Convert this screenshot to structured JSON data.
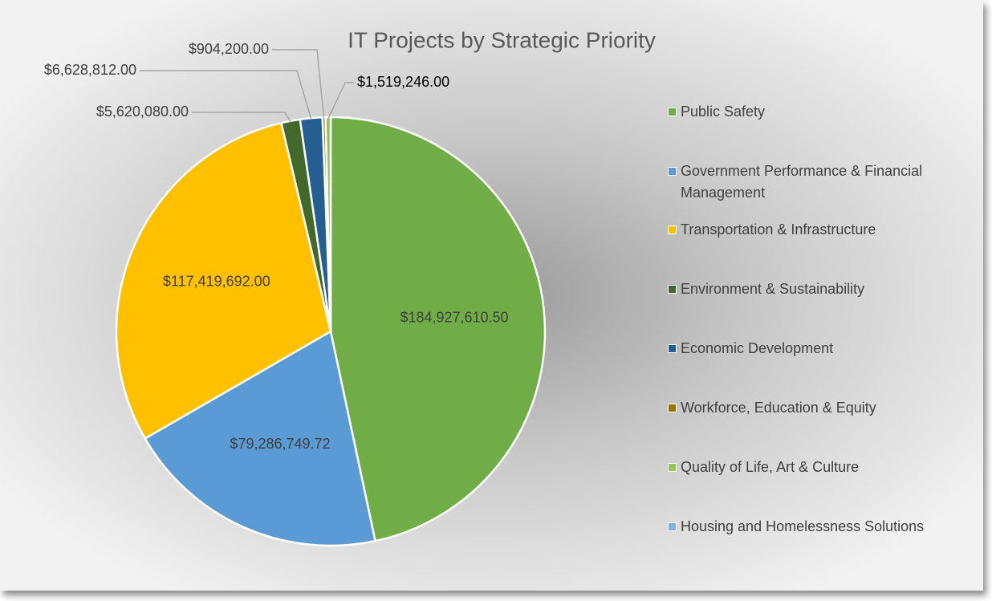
{
  "chart_data": {
    "type": "pie",
    "title": "IT Projects by Strategic Priority",
    "categories": [
      "Public Safety",
      "Government Performance & Financial Management",
      "Transportation & Infrastructure",
      "Environment & Sustainability",
      "Economic Development",
      "Workforce, Education & Equity",
      "Quality of Life, Art & Culture",
      "Housing and Homelessness Solutions"
    ],
    "values": [
      184927610.5,
      79286749.72,
      117419692.0,
      5620080.0,
      6628812.0,
      904200.0,
      1519246.0,
      null
    ],
    "value_labels": [
      "$184,927,610.50",
      "$79,286,749.72",
      "$117,419,692.00",
      "$5,620,080.00",
      "$6,628,812.00",
      "$904,200.00",
      "$1,519,246.00",
      null
    ],
    "colors": [
      "#70ad47",
      "#5b9bd5",
      "#ffc000",
      "#43682b",
      "#255e91",
      "#997300",
      "#8fc75a",
      "#7fb2e0"
    ],
    "legend": "right"
  }
}
